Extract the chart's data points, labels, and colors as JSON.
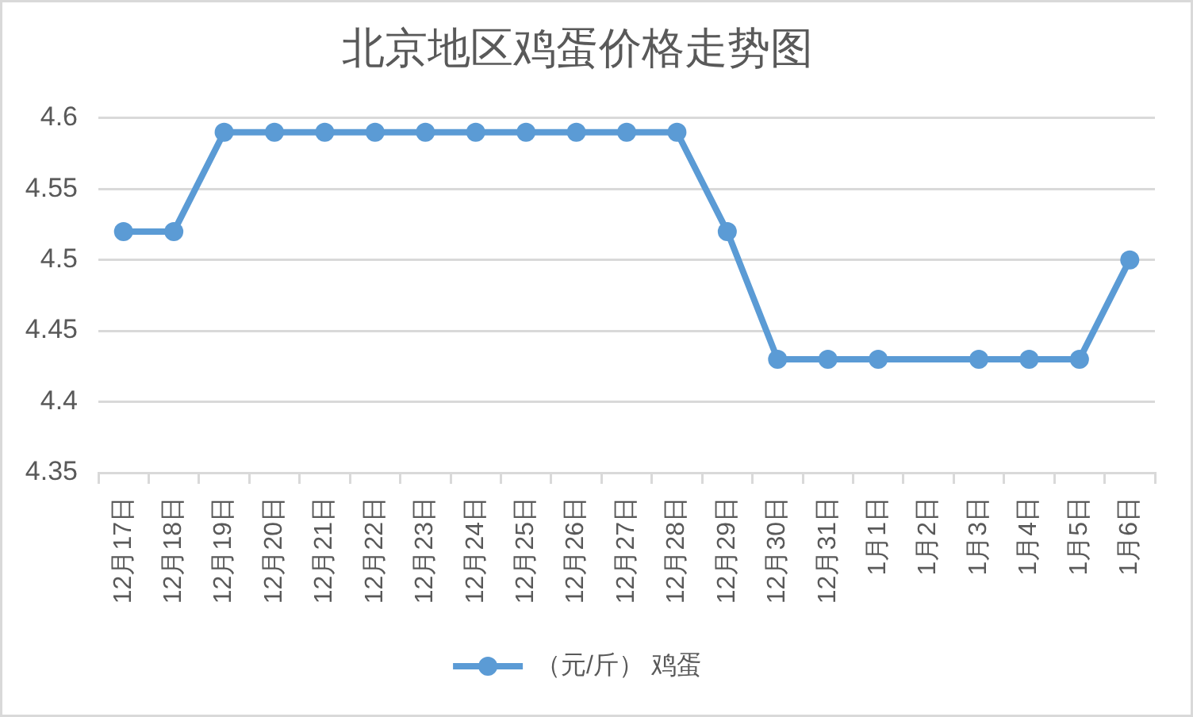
{
  "chart_data": {
    "type": "line",
    "title": "北京地区鸡蛋价格走势图",
    "categories": [
      "12月17日",
      "12月18日",
      "12月19日",
      "12月20日",
      "12月21日",
      "12月22日",
      "12月23日",
      "12月24日",
      "12月25日",
      "12月26日",
      "12月27日",
      "12月28日",
      "12月29日",
      "12月30日",
      "12月31日",
      "1月1日",
      "1月2日",
      "1月3日",
      "1月4日",
      "1月5日",
      "1月6日"
    ],
    "series": [
      {
        "name": "（元/斤） 鸡蛋",
        "color": "#5b9bd5",
        "values": [
          4.52,
          4.52,
          4.59,
          4.59,
          4.59,
          4.59,
          4.59,
          4.59,
          4.59,
          4.59,
          4.59,
          4.59,
          4.52,
          4.43,
          4.43,
          4.43,
          null,
          4.43,
          4.43,
          4.43,
          4.5
        ]
      }
    ],
    "ylim": [
      4.35,
      4.6
    ],
    "yticks": [
      4.35,
      4.4,
      4.45,
      4.5,
      4.55,
      4.6
    ],
    "grid": "y",
    "legend": "bottom",
    "marker": "circle",
    "line_style": "solid"
  }
}
